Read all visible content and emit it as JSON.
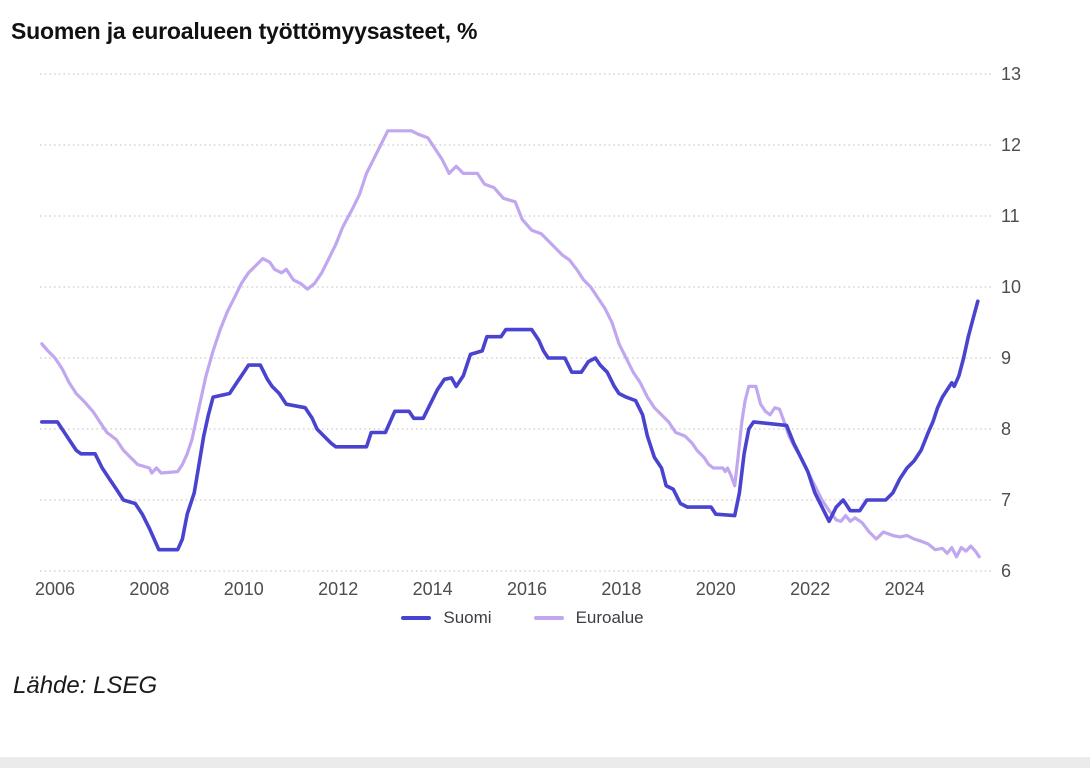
{
  "page": {
    "title": "Suomen ja euroalueen työttömyysasteet, %",
    "source": "Lähde: LSEG"
  },
  "colors": {
    "suomi_line": "#4a43cf",
    "euroalue_line": "#c0a7ef",
    "gridline": "#c9c9c9",
    "tick_label": "#4d4d4d",
    "title_text": "#111111"
  },
  "chart_data": {
    "type": "line",
    "title": "Suomen ja euroalueen työttömyysasteet, %",
    "xlabel": "",
    "ylabel": "%",
    "ylim": [
      6,
      13
    ],
    "y_ticks": [
      6,
      7,
      8,
      9,
      10,
      11,
      12,
      13
    ],
    "y_axis_side": "right",
    "x_ticks": [
      2006,
      2008,
      2010,
      2012,
      2014,
      2016,
      2018,
      2020,
      2022,
      2024
    ],
    "x_range": [
      2005.72,
      2025.6
    ],
    "grid": "horizontal-dotted",
    "legend_position": "bottom-center",
    "source": "Lähde: LSEG",
    "series": [
      {
        "name": "Suomi",
        "color": "#4a43cf",
        "points": [
          [
            2005.72,
            8.1
          ],
          [
            2006.05,
            8.1
          ],
          [
            2006.15,
            8.0
          ],
          [
            2006.3,
            7.85
          ],
          [
            2006.45,
            7.7
          ],
          [
            2006.55,
            7.65
          ],
          [
            2006.85,
            7.65
          ],
          [
            2007.0,
            7.45
          ],
          [
            2007.15,
            7.3
          ],
          [
            2007.3,
            7.15
          ],
          [
            2007.45,
            7.0
          ],
          [
            2007.7,
            6.95
          ],
          [
            2007.85,
            6.8
          ],
          [
            2008.0,
            6.6
          ],
          [
            2008.1,
            6.45
          ],
          [
            2008.2,
            6.3
          ],
          [
            2008.6,
            6.3
          ],
          [
            2008.7,
            6.45
          ],
          [
            2008.8,
            6.8
          ],
          [
            2008.95,
            7.1
          ],
          [
            2009.05,
            7.5
          ],
          [
            2009.15,
            7.9
          ],
          [
            2009.25,
            8.2
          ],
          [
            2009.35,
            8.45
          ],
          [
            2009.7,
            8.5
          ],
          [
            2009.85,
            8.65
          ],
          [
            2010.0,
            8.8
          ],
          [
            2010.1,
            8.9
          ],
          [
            2010.35,
            8.9
          ],
          [
            2010.5,
            8.7
          ],
          [
            2010.6,
            8.6
          ],
          [
            2010.75,
            8.5
          ],
          [
            2010.9,
            8.35
          ],
          [
            2011.3,
            8.3
          ],
          [
            2011.45,
            8.15
          ],
          [
            2011.55,
            8.0
          ],
          [
            2011.7,
            7.9
          ],
          [
            2011.85,
            7.8
          ],
          [
            2011.95,
            7.75
          ],
          [
            2012.6,
            7.75
          ],
          [
            2012.7,
            7.95
          ],
          [
            2013.0,
            7.95
          ],
          [
            2013.1,
            8.1
          ],
          [
            2013.2,
            8.25
          ],
          [
            2013.5,
            8.25
          ],
          [
            2013.6,
            8.15
          ],
          [
            2013.8,
            8.15
          ],
          [
            2013.95,
            8.35
          ],
          [
            2014.1,
            8.55
          ],
          [
            2014.25,
            8.7
          ],
          [
            2014.4,
            8.72
          ],
          [
            2014.5,
            8.6
          ],
          [
            2014.65,
            8.75
          ],
          [
            2014.8,
            9.05
          ],
          [
            2015.05,
            9.1
          ],
          [
            2015.15,
            9.3
          ],
          [
            2015.45,
            9.3
          ],
          [
            2015.55,
            9.4
          ],
          [
            2016.1,
            9.4
          ],
          [
            2016.25,
            9.25
          ],
          [
            2016.35,
            9.1
          ],
          [
            2016.45,
            9.0
          ],
          [
            2016.8,
            9.0
          ],
          [
            2016.95,
            8.8
          ],
          [
            2017.15,
            8.8
          ],
          [
            2017.3,
            8.95
          ],
          [
            2017.45,
            9.0
          ],
          [
            2017.55,
            8.9
          ],
          [
            2017.7,
            8.8
          ],
          [
            2017.85,
            8.6
          ],
          [
            2017.95,
            8.5
          ],
          [
            2018.1,
            8.45
          ],
          [
            2018.3,
            8.4
          ],
          [
            2018.45,
            8.2
          ],
          [
            2018.55,
            7.9
          ],
          [
            2018.7,
            7.6
          ],
          [
            2018.85,
            7.45
          ],
          [
            2018.95,
            7.2
          ],
          [
            2019.1,
            7.15
          ],
          [
            2019.25,
            6.95
          ],
          [
            2019.4,
            6.9
          ],
          [
            2019.9,
            6.9
          ],
          [
            2020.0,
            6.8
          ],
          [
            2020.4,
            6.78
          ],
          [
            2020.5,
            7.1
          ],
          [
            2020.6,
            7.65
          ],
          [
            2020.7,
            8.0
          ],
          [
            2020.8,
            8.1
          ],
          [
            2021.5,
            8.05
          ],
          [
            2021.65,
            7.8
          ],
          [
            2021.8,
            7.6
          ],
          [
            2021.95,
            7.4
          ],
          [
            2022.1,
            7.1
          ],
          [
            2022.25,
            6.9
          ],
          [
            2022.4,
            6.7
          ],
          [
            2022.55,
            6.9
          ],
          [
            2022.7,
            7.0
          ],
          [
            2022.85,
            6.85
          ],
          [
            2023.05,
            6.85
          ],
          [
            2023.2,
            7.0
          ],
          [
            2023.6,
            7.0
          ],
          [
            2023.75,
            7.1
          ],
          [
            2023.9,
            7.3
          ],
          [
            2024.05,
            7.45
          ],
          [
            2024.2,
            7.55
          ],
          [
            2024.35,
            7.7
          ],
          [
            2024.5,
            7.95
          ],
          [
            2024.6,
            8.1
          ],
          [
            2024.7,
            8.3
          ],
          [
            2024.8,
            8.45
          ],
          [
            2024.9,
            8.55
          ],
          [
            2025.0,
            8.65
          ],
          [
            2025.05,
            8.6
          ],
          [
            2025.15,
            8.75
          ],
          [
            2025.25,
            9.0
          ],
          [
            2025.35,
            9.3
          ],
          [
            2025.45,
            9.55
          ],
          [
            2025.55,
            9.8
          ]
        ]
      },
      {
        "name": "Euroalue",
        "color": "#c0a7ef",
        "points": [
          [
            2005.72,
            9.2
          ],
          [
            2005.85,
            9.1
          ],
          [
            2006.0,
            9.0
          ],
          [
            2006.15,
            8.85
          ],
          [
            2006.3,
            8.65
          ],
          [
            2006.45,
            8.5
          ],
          [
            2006.6,
            8.4
          ],
          [
            2006.8,
            8.25
          ],
          [
            2006.95,
            8.1
          ],
          [
            2007.1,
            7.95
          ],
          [
            2007.3,
            7.85
          ],
          [
            2007.45,
            7.7
          ],
          [
            2007.6,
            7.6
          ],
          [
            2007.75,
            7.5
          ],
          [
            2008.0,
            7.45
          ],
          [
            2008.05,
            7.38
          ],
          [
            2008.15,
            7.45
          ],
          [
            2008.25,
            7.38
          ],
          [
            2008.6,
            7.4
          ],
          [
            2008.7,
            7.5
          ],
          [
            2008.8,
            7.65
          ],
          [
            2008.9,
            7.85
          ],
          [
            2009.0,
            8.15
          ],
          [
            2009.1,
            8.45
          ],
          [
            2009.2,
            8.75
          ],
          [
            2009.35,
            9.1
          ],
          [
            2009.5,
            9.4
          ],
          [
            2009.65,
            9.65
          ],
          [
            2009.8,
            9.85
          ],
          [
            2009.95,
            10.05
          ],
          [
            2010.1,
            10.2
          ],
          [
            2010.25,
            10.3
          ],
          [
            2010.4,
            10.4
          ],
          [
            2010.55,
            10.35
          ],
          [
            2010.65,
            10.25
          ],
          [
            2010.8,
            10.2
          ],
          [
            2010.9,
            10.25
          ],
          [
            2011.05,
            10.1
          ],
          [
            2011.2,
            10.05
          ],
          [
            2011.35,
            9.97
          ],
          [
            2011.5,
            10.05
          ],
          [
            2011.65,
            10.2
          ],
          [
            2011.8,
            10.4
          ],
          [
            2011.95,
            10.6
          ],
          [
            2012.1,
            10.85
          ],
          [
            2012.3,
            11.1
          ],
          [
            2012.45,
            11.3
          ],
          [
            2012.6,
            11.6
          ],
          [
            2012.75,
            11.8
          ],
          [
            2012.9,
            12.0
          ],
          [
            2013.05,
            12.2
          ],
          [
            2013.55,
            12.2
          ],
          [
            2013.7,
            12.15
          ],
          [
            2013.9,
            12.1
          ],
          [
            2014.05,
            11.95
          ],
          [
            2014.2,
            11.8
          ],
          [
            2014.35,
            11.6
          ],
          [
            2014.5,
            11.7
          ],
          [
            2014.65,
            11.6
          ],
          [
            2014.95,
            11.6
          ],
          [
            2015.1,
            11.45
          ],
          [
            2015.3,
            11.4
          ],
          [
            2015.5,
            11.25
          ],
          [
            2015.75,
            11.2
          ],
          [
            2015.9,
            10.95
          ],
          [
            2016.1,
            10.8
          ],
          [
            2016.3,
            10.75
          ],
          [
            2016.45,
            10.65
          ],
          [
            2016.6,
            10.55
          ],
          [
            2016.75,
            10.45
          ],
          [
            2016.9,
            10.38
          ],
          [
            2017.05,
            10.25
          ],
          [
            2017.2,
            10.1
          ],
          [
            2017.35,
            10.0
          ],
          [
            2017.5,
            9.85
          ],
          [
            2017.65,
            9.7
          ],
          [
            2017.8,
            9.5
          ],
          [
            2017.95,
            9.2
          ],
          [
            2018.1,
            9.0
          ],
          [
            2018.25,
            8.8
          ],
          [
            2018.4,
            8.65
          ],
          [
            2018.55,
            8.45
          ],
          [
            2018.7,
            8.3
          ],
          [
            2018.85,
            8.2
          ],
          [
            2019.0,
            8.1
          ],
          [
            2019.15,
            7.95
          ],
          [
            2019.35,
            7.9
          ],
          [
            2019.5,
            7.8
          ],
          [
            2019.6,
            7.7
          ],
          [
            2019.75,
            7.6
          ],
          [
            2019.85,
            7.5
          ],
          [
            2019.95,
            7.45
          ],
          [
            2020.15,
            7.45
          ],
          [
            2020.2,
            7.4
          ],
          [
            2020.25,
            7.45
          ],
          [
            2020.32,
            7.35
          ],
          [
            2020.4,
            7.2
          ],
          [
            2020.47,
            7.6
          ],
          [
            2020.55,
            8.1
          ],
          [
            2020.62,
            8.4
          ],
          [
            2020.7,
            8.6
          ],
          [
            2020.85,
            8.6
          ],
          [
            2020.95,
            8.35
          ],
          [
            2021.05,
            8.25
          ],
          [
            2021.15,
            8.2
          ],
          [
            2021.25,
            8.3
          ],
          [
            2021.35,
            8.28
          ],
          [
            2021.45,
            8.1
          ],
          [
            2021.55,
            7.9
          ],
          [
            2021.65,
            7.77
          ],
          [
            2021.8,
            7.6
          ],
          [
            2021.95,
            7.4
          ],
          [
            2022.1,
            7.2
          ],
          [
            2022.25,
            7.0
          ],
          [
            2022.4,
            6.85
          ],
          [
            2022.55,
            6.72
          ],
          [
            2022.65,
            6.7
          ],
          [
            2022.75,
            6.78
          ],
          [
            2022.85,
            6.7
          ],
          [
            2022.95,
            6.75
          ],
          [
            2023.1,
            6.68
          ],
          [
            2023.25,
            6.55
          ],
          [
            2023.4,
            6.45
          ],
          [
            2023.55,
            6.55
          ],
          [
            2023.75,
            6.5
          ],
          [
            2023.9,
            6.48
          ],
          [
            2024.05,
            6.5
          ],
          [
            2024.2,
            6.45
          ],
          [
            2024.35,
            6.42
          ],
          [
            2024.5,
            6.38
          ],
          [
            2024.65,
            6.3
          ],
          [
            2024.8,
            6.32
          ],
          [
            2024.9,
            6.25
          ],
          [
            2025.0,
            6.33
          ],
          [
            2025.1,
            6.2
          ],
          [
            2025.2,
            6.33
          ],
          [
            2025.3,
            6.28
          ],
          [
            2025.4,
            6.35
          ],
          [
            2025.5,
            6.28
          ],
          [
            2025.58,
            6.2
          ]
        ]
      }
    ]
  }
}
